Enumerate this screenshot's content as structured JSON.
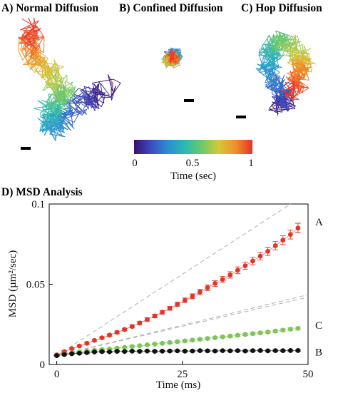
{
  "panels": {
    "a": {
      "title": "A) Normal Diffusion"
    },
    "b": {
      "title": "B) Confined Diffusion"
    },
    "c": {
      "title": "C) Hop Diffusion"
    },
    "d": {
      "title": "D) MSD Analysis"
    }
  },
  "colorbar": {
    "label": "Time (sec)",
    "ticks": [
      "0",
      "0.5",
      "1"
    ],
    "colors": [
      "#3b0f6f",
      "#3b4cc0",
      "#2a8fd0",
      "#2cb8b4",
      "#6cc86a",
      "#d4c83a",
      "#f0902a",
      "#e8302a"
    ]
  },
  "chart_data": {
    "type": "scatter",
    "title": "D) MSD Analysis",
    "xlabel": "Time (ms)",
    "ylabel": "MSD (µm²/sec)",
    "xlim": [
      -1.5,
      50
    ],
    "ylim": [
      0,
      0.1
    ],
    "xticks": [
      "0",
      "25",
      "50"
    ],
    "yticks": [
      "0",
      "0.05",
      "0.1"
    ],
    "series": [
      {
        "name": "A",
        "color": "#e0362a",
        "x": [
          0,
          1.5,
          3,
          4.5,
          6,
          7.5,
          9,
          10.5,
          12,
          13.5,
          15,
          16.5,
          18,
          19.5,
          21,
          22.5,
          24,
          25.5,
          27,
          28.5,
          30,
          31.5,
          33,
          34.5,
          36,
          37.5,
          39,
          40.5,
          42,
          43.5,
          45,
          46.5,
          48
        ],
        "y": [
          0.006,
          0.008,
          0.0098,
          0.0115,
          0.0132,
          0.015,
          0.0166,
          0.0183,
          0.02,
          0.0218,
          0.0237,
          0.0258,
          0.028,
          0.0302,
          0.0325,
          0.035,
          0.0375,
          0.04,
          0.0425,
          0.0452,
          0.0478,
          0.0505,
          0.053,
          0.0558,
          0.0587,
          0.0615,
          0.0645,
          0.0675,
          0.0705,
          0.074,
          0.0775,
          0.081,
          0.085
        ],
        "error": [
          0.0005,
          0.0005,
          0.0005,
          0.0006,
          0.0006,
          0.0006,
          0.0007,
          0.0007,
          0.0008,
          0.0008,
          0.0009,
          0.001,
          0.001,
          0.0011,
          0.0012,
          0.0012,
          0.0013,
          0.0014,
          0.0015,
          0.0016,
          0.0017,
          0.0018,
          0.0019,
          0.002,
          0.0021,
          0.0022,
          0.0023,
          0.0024,
          0.0025,
          0.0026,
          0.0027,
          0.0028,
          0.003
        ]
      },
      {
        "name": "C",
        "color": "#7fc45a",
        "x": [
          0,
          1.5,
          3,
          4.5,
          6,
          7.5,
          9,
          10.5,
          12,
          13.5,
          15,
          16.5,
          18,
          19.5,
          21,
          22.5,
          24,
          25.5,
          27,
          28.5,
          30,
          31.5,
          33,
          34.5,
          36,
          37.5,
          39,
          40.5,
          42,
          43.5,
          45,
          46.5,
          48
        ],
        "y": [
          0.0055,
          0.0065,
          0.0072,
          0.0078,
          0.0083,
          0.0088,
          0.0093,
          0.0097,
          0.0102,
          0.0107,
          0.0112,
          0.0117,
          0.0122,
          0.0127,
          0.0132,
          0.0137,
          0.0142,
          0.0147,
          0.0152,
          0.0157,
          0.0162,
          0.0167,
          0.0172,
          0.0177,
          0.0182,
          0.0187,
          0.0192,
          0.0197,
          0.0202,
          0.0208,
          0.0214,
          0.022,
          0.0225
        ],
        "error": [
          0.0004,
          0.0004,
          0.0004,
          0.0004,
          0.0004,
          0.0004,
          0.0005,
          0.0005,
          0.0005,
          0.0005,
          0.0005,
          0.0005,
          0.0005,
          0.0005,
          0.0005,
          0.0006,
          0.0006,
          0.0006,
          0.0006,
          0.0006,
          0.0006,
          0.0006,
          0.0006,
          0.0007,
          0.0007,
          0.0007,
          0.0007,
          0.0007,
          0.0007,
          0.0008,
          0.0008,
          0.0008,
          0.0008
        ]
      },
      {
        "name": "B",
        "color": "#111111",
        "x": [
          0,
          1.5,
          3,
          4.5,
          6,
          7.5,
          9,
          10.5,
          12,
          13.5,
          15,
          16.5,
          18,
          19.5,
          21,
          22.5,
          24,
          25.5,
          27,
          28.5,
          30,
          31.5,
          33,
          34.5,
          36,
          37.5,
          39,
          40.5,
          42,
          43.5,
          45,
          46.5,
          48
        ],
        "y": [
          0.0055,
          0.0062,
          0.0067,
          0.007,
          0.0074,
          0.0078,
          0.008,
          0.0079,
          0.0082,
          0.0081,
          0.0083,
          0.0082,
          0.0084,
          0.0082,
          0.0083,
          0.0084,
          0.0085,
          0.0083,
          0.0084,
          0.0086,
          0.0085,
          0.0084,
          0.0086,
          0.0085,
          0.0086,
          0.0084,
          0.0086,
          0.0087,
          0.0085,
          0.0086,
          0.0086,
          0.0087,
          0.0087
        ],
        "error": [
          0.0004,
          0.0004,
          0.0004,
          0.0004,
          0.0004,
          0.0004,
          0.0004,
          0.0004,
          0.0004,
          0.0004,
          0.0004,
          0.0004,
          0.0004,
          0.0004,
          0.0004,
          0.0004,
          0.0004,
          0.0004,
          0.0004,
          0.0004,
          0.0004,
          0.0004,
          0.0004,
          0.0004,
          0.0004,
          0.0004,
          0.0004,
          0.0004,
          0.0004,
          0.0004,
          0.0004,
          0.0004,
          0.0004
        ]
      }
    ],
    "reference_lines": [
      {
        "style": "dashed",
        "color": "#b0b0b0",
        "points": [
          [
            0,
            0.0055
          ],
          [
            50,
            0.107
          ]
        ]
      },
      {
        "style": "dashed",
        "color": "#b0b0b0",
        "points": [
          [
            0,
            0.0055
          ],
          [
            50,
            0.0435
          ]
        ]
      },
      {
        "style": "dashed",
        "color": "#b0b0b0",
        "points": [
          [
            0,
            0.0055
          ],
          [
            50,
            0.042
          ]
        ]
      }
    ]
  }
}
